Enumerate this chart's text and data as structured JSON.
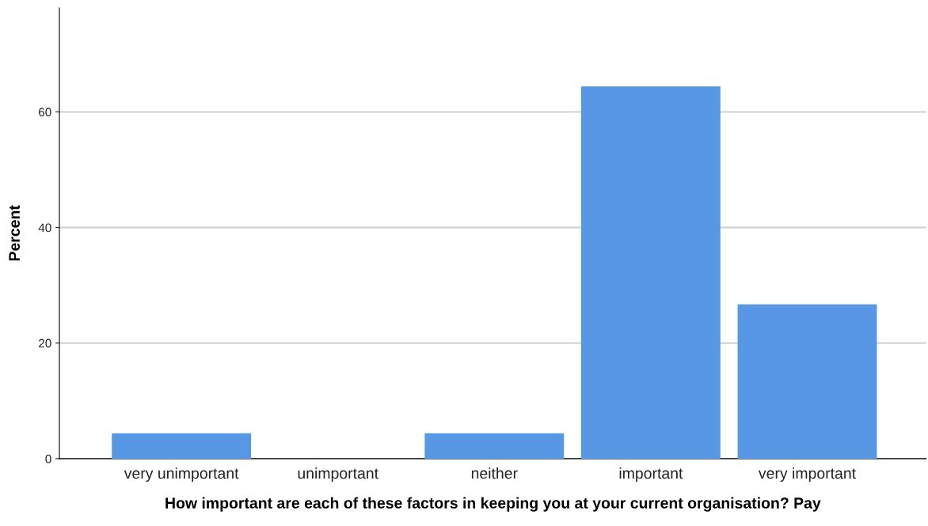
{
  "chart_data": {
    "type": "bar",
    "xlabel": "How important are each of these factors in keeping you at your current organisation? Pay",
    "ylabel": "Percent",
    "categories": [
      "very unimportant",
      "unimportant",
      "neither",
      "important",
      "very important"
    ],
    "values": [
      4.4,
      0,
      4.4,
      64.4,
      26.7
    ],
    "color": "#5897e3",
    "ylim": [
      0,
      78
    ],
    "yticks": [
      0,
      20,
      40,
      60
    ],
    "grid": "y",
    "legend": false
  }
}
